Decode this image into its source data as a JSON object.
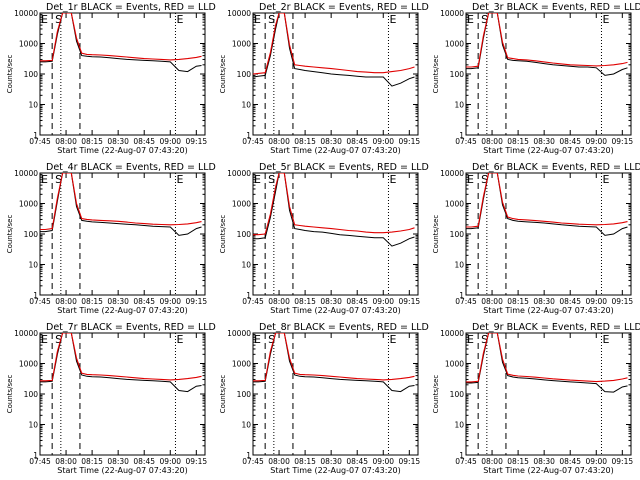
{
  "legend_text": "BLACK = Events, RED = LLD",
  "xlabel": "Start Time (22-Aug-07 07:43:20)",
  "ylabel": "Counts/sec",
  "markers": {
    "start": "S",
    "end": "E"
  },
  "colors": {
    "events": "#000000",
    "lld": "#e00000"
  },
  "chart_data": [
    {
      "type": "line",
      "title": "Det_1r",
      "xlim": [
        "07:45",
        "09:20"
      ],
      "ylim": [
        1,
        10000
      ],
      "yscale": "log",
      "x_ticks": [
        "07:45",
        "08:00",
        "08:15",
        "08:30",
        "08:45",
        "09:00",
        "09:15"
      ],
      "y_ticks": [
        "1",
        "10",
        "100",
        "1000",
        "10000"
      ],
      "x": [
        "07:45",
        "07:48",
        "07:52",
        "07:55",
        "07:58",
        "08:00",
        "08:03",
        "08:06",
        "08:09",
        "08:12",
        "08:15",
        "08:20",
        "08:25",
        "08:30",
        "08:35",
        "08:40",
        "08:45",
        "08:50",
        "08:55",
        "09:00",
        "09:05",
        "09:10",
        "09:15",
        "09:18"
      ],
      "series": [
        {
          "name": "Events",
          "values": [
            250,
            250,
            260,
            2000,
            10000,
            10000,
            10000,
            1200,
            400,
            380,
            370,
            360,
            340,
            320,
            300,
            290,
            280,
            270,
            260,
            250,
            130,
            120,
            180,
            190
          ]
        },
        {
          "name": "LLD",
          "values": [
            270,
            270,
            280,
            2500,
            10000,
            10000,
            10000,
            1500,
            480,
            440,
            430,
            420,
            400,
            380,
            360,
            340,
            320,
            310,
            300,
            290,
            300,
            320,
            350,
            380
          ]
        }
      ]
    },
    {
      "type": "line",
      "title": "Det_2r",
      "xlim": [
        "07:45",
        "09:20"
      ],
      "ylim": [
        1,
        10000
      ],
      "yscale": "log",
      "x_ticks": [
        "07:45",
        "08:00",
        "08:15",
        "08:30",
        "08:45",
        "09:00",
        "09:15"
      ],
      "y_ticks": [
        "1",
        "10",
        "100",
        "1000",
        "10000"
      ],
      "x": [
        "07:45",
        "07:48",
        "07:52",
        "07:55",
        "07:58",
        "08:00",
        "08:03",
        "08:06",
        "08:09",
        "08:12",
        "08:15",
        "08:20",
        "08:25",
        "08:30",
        "08:35",
        "08:40",
        "08:45",
        "08:50",
        "08:55",
        "09:00",
        "09:05",
        "09:10",
        "09:15",
        "09:18"
      ],
      "series": [
        {
          "name": "Events",
          "values": [
            80,
            85,
            90,
            400,
            3000,
            10000,
            10000,
            700,
            150,
            140,
            130,
            120,
            110,
            100,
            95,
            90,
            85,
            80,
            80,
            80,
            40,
            50,
            70,
            80
          ]
        },
        {
          "name": "LLD",
          "values": [
            100,
            105,
            110,
            500,
            4000,
            10000,
            10000,
            900,
            200,
            190,
            180,
            170,
            160,
            150,
            140,
            130,
            120,
            115,
            110,
            110,
            120,
            130,
            150,
            170
          ]
        }
      ]
    },
    {
      "type": "line",
      "title": "Det_3r",
      "xlim": [
        "07:45",
        "09:20"
      ],
      "ylim": [
        1,
        10000
      ],
      "yscale": "log",
      "x_ticks": [
        "07:45",
        "08:00",
        "08:15",
        "08:30",
        "08:45",
        "09:00",
        "09:15"
      ],
      "y_ticks": [
        "1",
        "10",
        "100",
        "1000",
        "10000"
      ],
      "x": [
        "07:45",
        "07:48",
        "07:52",
        "07:55",
        "07:58",
        "08:00",
        "08:03",
        "08:06",
        "08:09",
        "08:12",
        "08:15",
        "08:20",
        "08:25",
        "08:30",
        "08:35",
        "08:40",
        "08:45",
        "08:50",
        "08:55",
        "09:00",
        "09:05",
        "09:10",
        "09:15",
        "09:18"
      ],
      "series": [
        {
          "name": "Events",
          "values": [
            150,
            150,
            160,
            1500,
            10000,
            10000,
            10000,
            900,
            300,
            280,
            270,
            260,
            240,
            220,
            200,
            190,
            180,
            170,
            170,
            160,
            90,
            100,
            140,
            160
          ]
        },
        {
          "name": "LLD",
          "values": [
            170,
            170,
            180,
            1800,
            10000,
            10000,
            10000,
            1100,
            340,
            320,
            300,
            290,
            270,
            250,
            230,
            215,
            200,
            195,
            190,
            185,
            190,
            200,
            220,
            240
          ]
        }
      ]
    },
    {
      "type": "line",
      "title": "Det_4r",
      "xlim": [
        "07:45",
        "09:20"
      ],
      "ylim": [
        1,
        10000
      ],
      "yscale": "log",
      "x_ticks": [
        "07:45",
        "08:00",
        "08:15",
        "08:30",
        "08:45",
        "09:00",
        "09:15"
      ],
      "y_ticks": [
        "1",
        "10",
        "100",
        "1000",
        "10000"
      ],
      "x": [
        "07:45",
        "07:48",
        "07:52",
        "07:55",
        "07:58",
        "08:00",
        "08:03",
        "08:06",
        "08:09",
        "08:12",
        "08:15",
        "08:20",
        "08:25",
        "08:30",
        "08:35",
        "08:40",
        "08:45",
        "08:50",
        "08:55",
        "09:00",
        "09:05",
        "09:10",
        "09:15",
        "09:18"
      ],
      "series": [
        {
          "name": "Events",
          "values": [
            120,
            120,
            130,
            1200,
            10000,
            10000,
            10000,
            800,
            280,
            260,
            250,
            240,
            230,
            220,
            210,
            200,
            190,
            180,
            175,
            170,
            90,
            100,
            150,
            170
          ]
        },
        {
          "name": "LLD",
          "values": [
            140,
            140,
            150,
            1500,
            10000,
            10000,
            10000,
            1000,
            320,
            300,
            290,
            280,
            270,
            260,
            245,
            230,
            220,
            210,
            205,
            200,
            205,
            215,
            235,
            255
          ]
        }
      ]
    },
    {
      "type": "line",
      "title": "Det_5r",
      "xlim": [
        "07:45",
        "09:20"
      ],
      "ylim": [
        1,
        10000
      ],
      "yscale": "log",
      "x_ticks": [
        "07:45",
        "08:00",
        "08:15",
        "08:30",
        "08:45",
        "09:00",
        "09:15"
      ],
      "y_ticks": [
        "1",
        "10",
        "100",
        "1000",
        "10000"
      ],
      "x": [
        "07:45",
        "07:48",
        "07:52",
        "07:55",
        "07:58",
        "08:00",
        "08:03",
        "08:06",
        "08:09",
        "08:12",
        "08:15",
        "08:20",
        "08:25",
        "08:30",
        "08:35",
        "08:40",
        "08:45",
        "08:50",
        "08:55",
        "09:00",
        "09:05",
        "09:10",
        "09:15",
        "09:18"
      ],
      "series": [
        {
          "name": "Events",
          "values": [
            70,
            70,
            75,
            350,
            2500,
            10000,
            10000,
            600,
            150,
            140,
            130,
            120,
            115,
            105,
            95,
            90,
            85,
            80,
            75,
            75,
            40,
            50,
            70,
            80
          ]
        },
        {
          "name": "LLD",
          "values": [
            95,
            95,
            100,
            450,
            3500,
            10000,
            10000,
            800,
            200,
            190,
            180,
            170,
            160,
            150,
            140,
            130,
            125,
            115,
            110,
            110,
            115,
            125,
            140,
            160
          ]
        }
      ]
    },
    {
      "type": "line",
      "title": "Det_6r",
      "xlim": [
        "07:45",
        "09:20"
      ],
      "ylim": [
        1,
        10000
      ],
      "yscale": "log",
      "x_ticks": [
        "07:45",
        "08:00",
        "08:15",
        "08:30",
        "08:45",
        "09:00",
        "09:15"
      ],
      "y_ticks": [
        "1",
        "10",
        "100",
        "1000",
        "10000"
      ],
      "x": [
        "07:45",
        "07:48",
        "07:52",
        "07:55",
        "07:58",
        "08:00",
        "08:03",
        "08:06",
        "08:09",
        "08:12",
        "08:15",
        "08:20",
        "08:25",
        "08:30",
        "08:35",
        "08:40",
        "08:45",
        "08:50",
        "08:55",
        "09:00",
        "09:05",
        "09:10",
        "09:15",
        "09:18"
      ],
      "series": [
        {
          "name": "Events",
          "values": [
            150,
            150,
            160,
            1400,
            10000,
            10000,
            10000,
            900,
            320,
            280,
            260,
            250,
            240,
            230,
            215,
            200,
            190,
            180,
            175,
            170,
            90,
            100,
            150,
            170
          ]
        },
        {
          "name": "LLD",
          "values": [
            170,
            170,
            180,
            1700,
            10000,
            10000,
            10000,
            1100,
            360,
            320,
            300,
            290,
            275,
            260,
            245,
            230,
            220,
            210,
            205,
            200,
            205,
            215,
            235,
            255
          ]
        }
      ]
    },
    {
      "type": "line",
      "title": "Det_7r",
      "xlim": [
        "07:45",
        "09:20"
      ],
      "ylim": [
        1,
        10000
      ],
      "yscale": "log",
      "x_ticks": [
        "07:45",
        "08:00",
        "08:15",
        "08:30",
        "08:45",
        "09:00",
        "09:15"
      ],
      "y_ticks": [
        "1",
        "10",
        "100",
        "1000",
        "10000"
      ],
      "x": [
        "07:45",
        "07:48",
        "07:52",
        "07:55",
        "07:58",
        "08:00",
        "08:03",
        "08:06",
        "08:09",
        "08:12",
        "08:15",
        "08:20",
        "08:25",
        "08:30",
        "08:35",
        "08:40",
        "08:45",
        "08:50",
        "08:55",
        "09:00",
        "09:05",
        "09:10",
        "09:15",
        "09:18"
      ],
      "series": [
        {
          "name": "Events",
          "values": [
            250,
            250,
            260,
            2000,
            10000,
            10000,
            10000,
            1200,
            420,
            380,
            370,
            360,
            340,
            320,
            300,
            290,
            280,
            270,
            260,
            250,
            130,
            120,
            180,
            190
          ]
        },
        {
          "name": "LLD",
          "values": [
            270,
            270,
            280,
            2500,
            10000,
            10000,
            10000,
            1500,
            480,
            440,
            430,
            420,
            400,
            380,
            360,
            340,
            320,
            310,
            300,
            290,
            300,
            320,
            350,
            380
          ]
        }
      ]
    },
    {
      "type": "line",
      "title": "Det_8r",
      "xlim": [
        "07:45",
        "09:20"
      ],
      "ylim": [
        1,
        10000
      ],
      "yscale": "log",
      "x_ticks": [
        "07:45",
        "08:00",
        "08:15",
        "08:30",
        "08:45",
        "09:00",
        "09:15"
      ],
      "y_ticks": [
        "1",
        "10",
        "100",
        "1000",
        "10000"
      ],
      "x": [
        "07:45",
        "07:48",
        "07:52",
        "07:55",
        "07:58",
        "08:00",
        "08:03",
        "08:06",
        "08:09",
        "08:12",
        "08:15",
        "08:20",
        "08:25",
        "08:30",
        "08:35",
        "08:40",
        "08:45",
        "08:50",
        "08:55",
        "09:00",
        "09:05",
        "09:10",
        "09:15",
        "09:18"
      ],
      "series": [
        {
          "name": "Events",
          "values": [
            250,
            250,
            260,
            2000,
            10000,
            10000,
            10000,
            1200,
            420,
            380,
            370,
            360,
            340,
            320,
            300,
            290,
            280,
            270,
            260,
            250,
            130,
            120,
            180,
            190
          ]
        },
        {
          "name": "LLD",
          "values": [
            270,
            270,
            280,
            2500,
            10000,
            10000,
            10000,
            1500,
            480,
            440,
            430,
            420,
            400,
            380,
            360,
            340,
            320,
            310,
            300,
            290,
            300,
            320,
            350,
            380
          ]
        }
      ]
    },
    {
      "type": "line",
      "title": "Det_9r",
      "xlim": [
        "07:45",
        "09:20"
      ],
      "ylim": [
        1,
        10000
      ],
      "yscale": "log",
      "x_ticks": [
        "07:45",
        "08:00",
        "08:15",
        "08:30",
        "08:45",
        "09:00",
        "09:15"
      ],
      "y_ticks": [
        "1",
        "10",
        "100",
        "1000",
        "10000"
      ],
      "x": [
        "07:45",
        "07:48",
        "07:52",
        "07:55",
        "07:58",
        "08:00",
        "08:03",
        "08:06",
        "08:09",
        "08:12",
        "08:15",
        "08:20",
        "08:25",
        "08:30",
        "08:35",
        "08:40",
        "08:45",
        "08:50",
        "08:55",
        "09:00",
        "09:05",
        "09:10",
        "09:15",
        "09:18"
      ],
      "series": [
        {
          "name": "Events",
          "values": [
            230,
            230,
            240,
            1800,
            10000,
            10000,
            10000,
            1100,
            400,
            360,
            340,
            330,
            310,
            290,
            275,
            260,
            250,
            240,
            230,
            220,
            120,
            115,
            170,
            185
          ]
        },
        {
          "name": "LLD",
          "values": [
            250,
            250,
            260,
            2200,
            10000,
            10000,
            10000,
            1400,
            450,
            410,
            390,
            375,
            355,
            335,
            315,
            300,
            285,
            275,
            265,
            255,
            265,
            280,
            310,
            340
          ]
        }
      ]
    }
  ]
}
